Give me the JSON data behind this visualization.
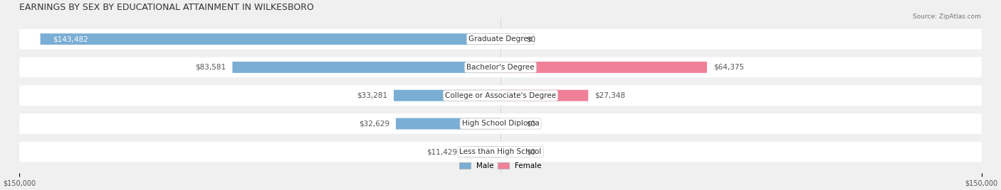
{
  "title": "EARNINGS BY SEX BY EDUCATIONAL ATTAINMENT IN WILKESBORO",
  "source": "Source: ZipAtlas.com",
  "categories": [
    "Less than High School",
    "High School Diploma",
    "College or Associate's Degree",
    "Bachelor's Degree",
    "Graduate Degree"
  ],
  "male_values": [
    11429,
    32629,
    33281,
    83581,
    143482
  ],
  "female_values": [
    0,
    0,
    27348,
    64375,
    0
  ],
  "male_color": "#7aaed4",
  "female_color": "#f08098",
  "male_label": "Male",
  "female_label": "Female",
  "xlim": 150000,
  "bg_color": "#f0f0f0",
  "bar_bg_color": "#e0e0e0",
  "row_bg_color": "#f8f8f8",
  "title_fontsize": 9,
  "label_fontsize": 7.5,
  "tick_fontsize": 7
}
